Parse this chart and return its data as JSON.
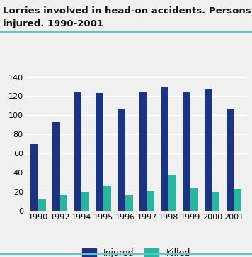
{
  "years": [
    "1990",
    "1992",
    "1994",
    "1995",
    "1996",
    "1997",
    "1998",
    "1999",
    "2000",
    "2001"
  ],
  "injured": [
    70,
    93,
    125,
    123,
    107,
    125,
    130,
    125,
    128,
    106
  ],
  "killed": [
    12,
    17,
    20,
    26,
    16,
    21,
    38,
    24,
    20,
    23
  ],
  "injured_color": "#1c3380",
  "killed_color": "#2ab5a0",
  "ylim": [
    0,
    140
  ],
  "yticks": [
    0,
    20,
    40,
    60,
    80,
    100,
    120,
    140
  ],
  "legend_labels": [
    "Injured",
    "Killed"
  ],
  "background_color": "#f0f0f0",
  "plot_bg_color": "#f0f0f0",
  "bar_width": 0.35,
  "title_color": "#111111",
  "top_line_color": "#5bc8c8",
  "title_line1": "Lorries involved in head-on accidents. Persons killed or",
  "title_line2": "injured. 1990-2001",
  "title_fontsize": 9.5,
  "tick_fontsize": 8,
  "legend_fontsize": 9
}
